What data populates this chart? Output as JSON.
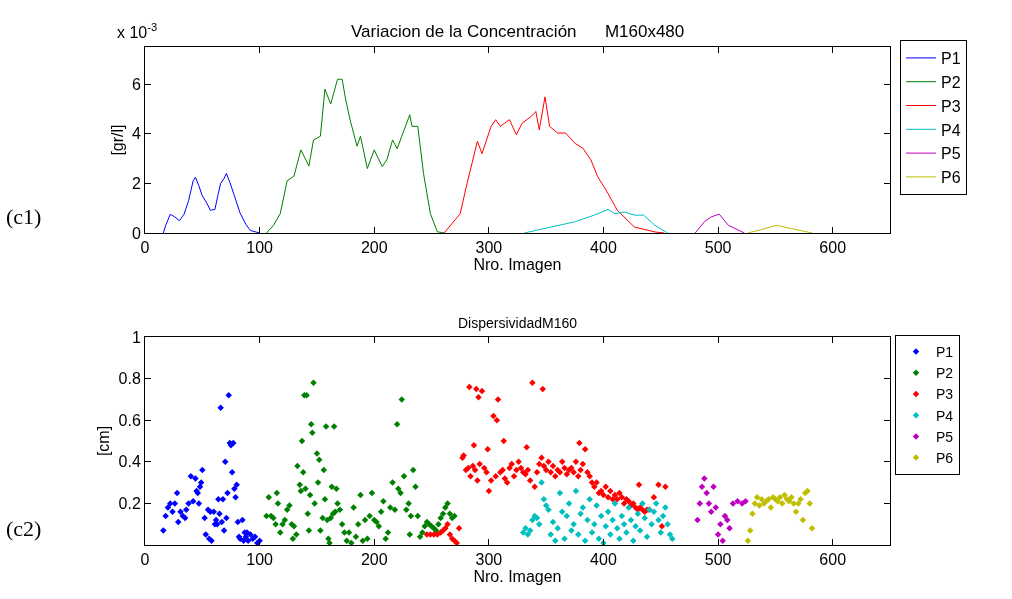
{
  "chart_data": [
    {
      "type": "line",
      "title": "Variacion de la Concentración      M160x480",
      "xlabel": "Nro. Imagen",
      "ylabel": "[gr/l]",
      "annotations": [
        "(c1)",
        "x 10$^{-3}$"
      ],
      "xlim": [
        0,
        650
      ],
      "xticks": [
        0,
        100,
        200,
        300,
        400,
        500,
        600
      ],
      "ylim": [
        0,
        7.5
      ],
      "yticks": [
        0,
        2,
        4,
        6
      ],
      "grid": false,
      "legend": "right",
      "marker": "none",
      "line_style": "solid",
      "series": [
        {
          "name": "P1",
          "color": "#0000ff",
          "x": [
            16,
            18,
            22,
            26,
            30,
            34,
            38,
            42,
            44,
            47,
            50,
            54,
            57,
            61,
            64,
            66,
            69,
            71,
            74,
            78,
            83,
            88,
            92,
            100
          ],
          "values": [
            0,
            0.3,
            0.75,
            0.65,
            0.5,
            0.75,
            1.3,
            2.1,
            2.25,
            1.9,
            1.5,
            1.2,
            0.92,
            0.95,
            1.6,
            2.0,
            2.2,
            2.4,
            2.05,
            1.5,
            0.8,
            0.35,
            0.1,
            0
          ]
        },
        {
          "name": "P2",
          "color": "#008000",
          "x": [
            106,
            112,
            118,
            124,
            130,
            136,
            143,
            147,
            153,
            157,
            162,
            168,
            172,
            175,
            179,
            185,
            188,
            194,
            200,
            207,
            211,
            216,
            220,
            224,
            231,
            233,
            238,
            243,
            249,
            255,
            261
          ],
          "values": [
            0,
            0.3,
            0.78,
            2.1,
            2.3,
            3.35,
            2.7,
            3.75,
            3.9,
            5.8,
            5.2,
            6.2,
            6.2,
            5.4,
            4.55,
            3.5,
            3.9,
            2.6,
            3.35,
            2.68,
            2.95,
            3.75,
            3.4,
            3.9,
            4.77,
            4.3,
            4.3,
            2.4,
            0.78,
            0.05,
            0
          ]
        },
        {
          "name": "P3",
          "color": "#ff0000",
          "x": [
            261,
            275,
            281,
            290,
            294,
            302,
            306,
            310,
            318,
            324,
            329,
            337,
            341,
            344,
            349,
            353,
            360,
            367,
            375,
            382,
            389,
            395,
            404,
            412,
            427,
            445,
            453
          ],
          "values": [
            0,
            0.78,
            2.0,
            3.7,
            3.2,
            4.3,
            4.57,
            4.3,
            4.57,
            3.96,
            4.43,
            4.7,
            4.9,
            4.16,
            5.49,
            4.3,
            4.03,
            4.03,
            3.62,
            3.42,
            2.95,
            2.27,
            1.59,
            0.92,
            0.24,
            0.04,
            0
          ]
        },
        {
          "name": "P4",
          "color": "#00bfbf",
          "x": [
            331,
            354,
            375,
            392,
            404,
            410,
            418,
            427,
            435,
            445,
            456
          ],
          "values": [
            0,
            0.24,
            0.45,
            0.72,
            0.95,
            0.78,
            0.85,
            0.72,
            0.72,
            0.31,
            0
          ]
        },
        {
          "name": "P5",
          "color": "#bf00bf",
          "x": [
            480,
            488,
            494,
            501,
            509,
            523
          ],
          "values": [
            0,
            0.45,
            0.65,
            0.76,
            0.31,
            0
          ]
        },
        {
          "name": "P6",
          "color": "#bfbf00",
          "x": [
            526,
            538,
            551,
            564,
            582
          ],
          "values": [
            0,
            0.14,
            0.31,
            0.18,
            0
          ]
        }
      ]
    },
    {
      "type": "scatter",
      "title": "DispersividadM160",
      "xlabel": "Nro. Imagen",
      "ylabel": "[cm]",
      "annotations": [
        "(c2)"
      ],
      "xlim": [
        0,
        650
      ],
      "xticks": [
        0,
        100,
        200,
        300,
        400,
        500,
        600
      ],
      "ylim": [
        0,
        1
      ],
      "yticks": [
        0.2,
        0.4,
        0.6,
        0.8,
        1
      ],
      "grid": false,
      "legend": "right",
      "marker": "diamond",
      "series": [
        {
          "name": "P1",
          "color": "#0000ff",
          "x": [
            16,
            18,
            20,
            22,
            24,
            26,
            28,
            29,
            31,
            33,
            35,
            36,
            38,
            40,
            42,
            44,
            45,
            46,
            47,
            48,
            49,
            50,
            52,
            53,
            55,
            56,
            57,
            58,
            60,
            61,
            62,
            63,
            64,
            65,
            66,
            67,
            68,
            69,
            70,
            71,
            72,
            73,
            74,
            75,
            76,
            77,
            78,
            79,
            80,
            81,
            82,
            83,
            85,
            86,
            87,
            88,
            89,
            90,
            92,
            94,
            96,
            98,
            100
          ],
          "values": [
            0.07,
            0.14,
            0.18,
            0.2,
            0.16,
            0.2,
            0.25,
            0.11,
            0.16,
            0.14,
            0.13,
            0.17,
            0.2,
            0.33,
            0.21,
            0.32,
            0.26,
            0.25,
            0.2,
            0.28,
            0.3,
            0.36,
            0.13,
            0.05,
            0.17,
            0.03,
            0.16,
            0.02,
            0.16,
            0.1,
            0.12,
            0.1,
            0.22,
            0.15,
            0.66,
            0.11,
            0.22,
            0.07,
            0.4,
            0.13,
            0.25,
            0.72,
            0.49,
            0.48,
            0.35,
            0.49,
            0.27,
            0.23,
            0.29,
            0.11,
            0.04,
            0.03,
            0.12,
            0.02,
            0.06,
            0.04,
            0.06,
            0.02,
            0.05,
            0.03,
            0.04,
            0.01,
            0.02
          ]
        },
        {
          "name": "P2",
          "color": "#008000",
          "x": [
            106,
            108,
            110,
            112,
            114,
            115,
            116,
            118,
            120,
            122,
            124,
            126,
            128,
            129,
            130,
            132,
            133,
            135,
            136,
            137,
            138,
            139,
            140,
            141,
            142,
            143,
            144,
            145,
            146,
            147,
            148,
            150,
            151,
            152,
            153,
            155,
            156,
            157,
            158,
            159,
            160,
            161,
            162,
            163,
            164,
            165,
            166,
            167,
            168,
            170,
            172,
            174,
            176,
            178,
            180,
            182,
            184,
            186,
            188,
            190,
            192,
            194,
            196,
            198,
            200,
            202,
            204,
            206,
            208,
            210,
            212,
            214,
            216,
            218,
            220,
            221,
            223,
            224,
            226,
            228,
            230,
            231,
            232,
            234,
            236,
            238,
            240,
            242,
            244,
            246,
            248,
            250,
            252,
            254,
            256,
            258,
            260,
            262,
            264,
            266,
            268,
            270
          ],
          "values": [
            0.14,
            0.23,
            0.14,
            0.13,
            0.1,
            0.25,
            0.2,
            0.06,
            0.1,
            0.12,
            0.17,
            0.19,
            0.1,
            0.03,
            0.09,
            0.05,
            0.38,
            0.29,
            0.26,
            0.5,
            0.35,
            0.72,
            0.27,
            0.72,
            0.15,
            0.07,
            0.24,
            0.58,
            0.54,
            0.78,
            0.2,
            0.44,
            0.3,
            0.41,
            0.07,
            0.13,
            0.36,
            0.22,
            0.57,
            0.12,
            0.03,
            0.01,
            0.13,
            0.28,
            0.15,
            0.57,
            0.16,
            0.27,
            0.2,
            0.17,
            0.1,
            0.06,
            0.02,
            0.06,
            0.01,
            0.18,
            0.04,
            0.1,
            0.24,
            0.02,
            0.12,
            0.03,
            0.14,
            0.25,
            0.12,
            0.11,
            0.09,
            0.16,
            0.21,
            0.03,
            0.06,
            0.18,
            0.3,
            0.17,
            0.58,
            0.27,
            0.25,
            0.7,
            0.33,
            0.17,
            0.2,
            0.05,
            0.14,
            0.36,
            0.28,
            0.14,
            0.04,
            0.06,
            0.09,
            0.11,
            0.1,
            0.09,
            0.08,
            0.07,
            0.1,
            0.13,
            0.15,
            0.18,
            0.2,
            0.15,
            0.13,
            0.14
          ]
        },
        {
          "name": "P3",
          "color": "#ff0000",
          "x": [
            246,
            249,
            252,
            255,
            258,
            260,
            262,
            264,
            266,
            268,
            270,
            272,
            274,
            277,
            278,
            280,
            282,
            283,
            284,
            286,
            287,
            288,
            289,
            290,
            291,
            292,
            294,
            296,
            298,
            299,
            300,
            302,
            304,
            306,
            307,
            308,
            310,
            312,
            313,
            314,
            316,
            318,
            320,
            322,
            324,
            326,
            328,
            330,
            332,
            333,
            334,
            336,
            338,
            340,
            342,
            344,
            346,
            347,
            348,
            350,
            352,
            354,
            356,
            358,
            360,
            362,
            364,
            366,
            368,
            370,
            372,
            374,
            376,
            378,
            379,
            380,
            382,
            384,
            386,
            388,
            390,
            392,
            394,
            396,
            398,
            400,
            402,
            404,
            406,
            408,
            410,
            412,
            414,
            416,
            418,
            420,
            422,
            424,
            426,
            428,
            430,
            431,
            432,
            434,
            436,
            438,
            440,
            444,
            448,
            451,
            454
          ],
          "values": [
            0.05,
            0.05,
            0.05,
            0.05,
            0.06,
            0.07,
            0.08,
            0.1,
            0.05,
            0.03,
            0.02,
            0.01,
            0.08,
            0.42,
            0.43,
            0.36,
            0.37,
            0.76,
            0.33,
            0.38,
            0.48,
            0.36,
            0.75,
            0.31,
            0.71,
            0.39,
            0.74,
            0.37,
            0.35,
            0.46,
            0.26,
            0.31,
            0.62,
            0.33,
            0.6,
            0.7,
            0.35,
            0.36,
            0.5,
            0.32,
            0.3,
            0.37,
            0.39,
            0.33,
            0.36,
            0.4,
            0.37,
            0.35,
            0.34,
            0.47,
            0.36,
            0.31,
            0.78,
            0.28,
            0.35,
            0.39,
            0.42,
            0.75,
            0.38,
            0.36,
            0.4,
            0.35,
            0.38,
            0.33,
            0.36,
            0.35,
            0.4,
            0.37,
            0.34,
            0.36,
            0.37,
            0.35,
            0.4,
            0.33,
            0.49,
            0.36,
            0.39,
            0.46,
            0.35,
            0.33,
            0.3,
            0.28,
            0.3,
            0.25,
            0.26,
            0.24,
            0.28,
            0.23,
            0.26,
            0.22,
            0.24,
            0.22,
            0.25,
            0.23,
            0.2,
            0.22,
            0.21,
            0.19,
            0.2,
            0.18,
            0.17,
            0.29,
            0.18,
            0.17,
            0.16,
            0.17,
            0.17,
            0.23,
            0.29,
            0.09,
            0.28
          ]
        },
        {
          "name": "P4",
          "color": "#00bfbf",
          "x": [
            330,
            332,
            334,
            336,
            338,
            340,
            342,
            344,
            346,
            348,
            350,
            352,
            354,
            356,
            358,
            360,
            362,
            364,
            366,
            368,
            370,
            372,
            374,
            376,
            378,
            380,
            382,
            384,
            386,
            388,
            390,
            392,
            394,
            396,
            398,
            400,
            402,
            404,
            406,
            408,
            410,
            412,
            414,
            416,
            418,
            420,
            422,
            424,
            426,
            428,
            430,
            432,
            434,
            436,
            438,
            440,
            442,
            444,
            446,
            448,
            450,
            452,
            454,
            456,
            458,
            460
          ],
          "values": [
            0.06,
            0.08,
            0.05,
            0.07,
            0.12,
            0.14,
            0.13,
            0.1,
            0.3,
            0.22,
            0.19,
            0.17,
            0.05,
            0.11,
            0.02,
            0.08,
            0.25,
            0.16,
            0.03,
            0.14,
            0.2,
            0.07,
            0.1,
            0.26,
            0.05,
            0.15,
            0.18,
            0.02,
            0.12,
            0.22,
            0.06,
            0.1,
            0.19,
            0.03,
            0.14,
            0.01,
            0.09,
            0.16,
            0.05,
            0.12,
            0.2,
            0.08,
            0.03,
            0.14,
            0.1,
            0.06,
            0.18,
            0.12,
            0.02,
            0.09,
            0.15,
            0.07,
            0.2,
            0.13,
            0.04,
            0.17,
            0.1,
            0.16,
            0.2,
            0.12,
            0.06,
            0.14,
            0.18,
            0.1,
            0.05,
            0.03
          ]
        },
        {
          "name": "P5",
          "color": "#bf00bf",
          "x": [
            482,
            484,
            486,
            488,
            490,
            492,
            494,
            496,
            498,
            500,
            502,
            504,
            506,
            508,
            510,
            513,
            517,
            521,
            524
          ],
          "values": [
            0.12,
            0.2,
            0.28,
            0.32,
            0.25,
            0.2,
            0.16,
            0.28,
            0.18,
            0.05,
            0.1,
            0.02,
            0.14,
            0.12,
            0.08,
            0.2,
            0.21,
            0.2,
            0.21
          ]
        },
        {
          "name": "P6",
          "color": "#bfbf00",
          "x": [
            526,
            528,
            530,
            532,
            534,
            536,
            538,
            540,
            542,
            544,
            546,
            548,
            550,
            552,
            554,
            556,
            558,
            560,
            562,
            564,
            566,
            568,
            570,
            572,
            574,
            576,
            578,
            580,
            582
          ],
          "values": [
            0.02,
            0.07,
            0.15,
            0.2,
            0.23,
            0.19,
            0.22,
            0.2,
            0.21,
            0.22,
            0.18,
            0.23,
            0.22,
            0.21,
            0.23,
            0.2,
            0.24,
            0.22,
            0.21,
            0.23,
            0.2,
            0.16,
            0.2,
            0.22,
            0.12,
            0.25,
            0.26,
            0.2,
            0.08
          ]
        }
      ]
    }
  ]
}
